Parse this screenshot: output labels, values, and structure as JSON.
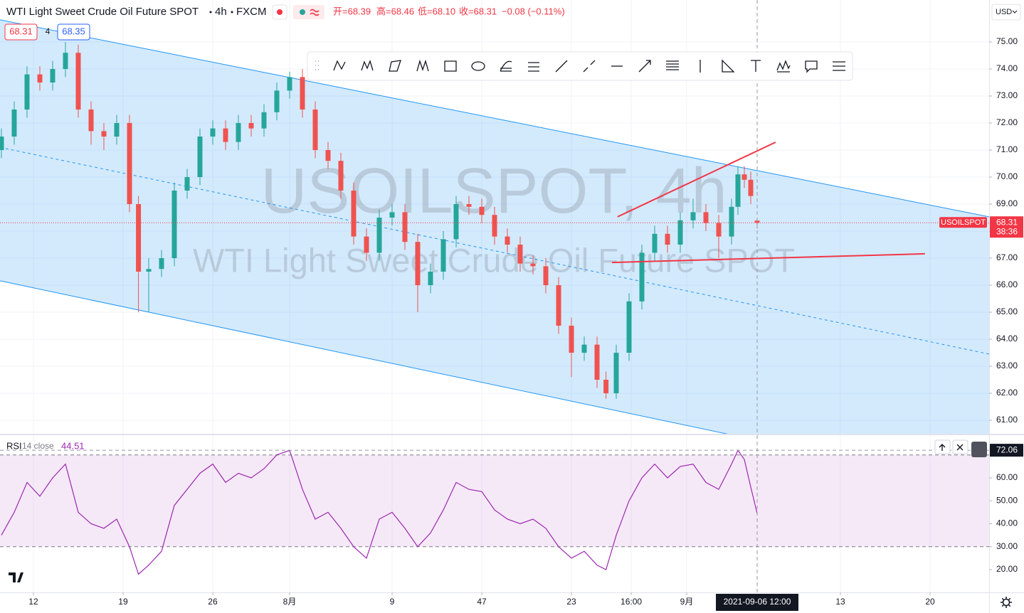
{
  "header": {
    "symbol": "WTI Light Sweet Crude Oil Future SPOT",
    "interval": "4h",
    "exchange": "FXCM",
    "ohlc": [
      "开=68.39",
      "高=68.46",
      "低=68.10",
      "收=68.31",
      "−0.08 (−0.11%)"
    ]
  },
  "quote": {
    "spread": "4",
    "ask": "68.35"
  },
  "currency": "USD",
  "watermark": [
    "USOILSPOT, 4h",
    "WTI Light Sweet Crude Oil Future SPOT"
  ],
  "crosshair": {
    "x": {
      "value": 68.5,
      "label": "2021-09-06 12:00"
    },
    "y": {
      "value": 72.06,
      "label": "72.06"
    }
  },
  "chart_data": [
    {
      "type": "candlestick",
      "up_color": "#26a69a",
      "down_color": "#ef5350",
      "x": [
        9.5,
        10.5,
        11.5,
        12.5,
        13.5,
        14.5,
        15.5,
        16.5,
        17.5,
        18.5,
        19.5,
        20.2,
        21,
        22,
        23,
        24,
        25,
        26,
        27,
        28,
        29,
        30,
        31,
        32,
        33,
        34,
        35,
        36,
        37,
        38,
        39,
        40,
        41,
        42,
        43,
        44,
        45,
        46,
        47,
        48,
        49,
        50,
        51,
        52,
        53,
        54,
        55,
        56,
        56.7,
        57.5,
        58.5,
        59.5,
        60.5,
        61.5,
        62.5,
        63.5,
        64.5,
        65.5,
        66.5,
        67,
        67.5,
        68,
        68.5
      ],
      "open": [
        71.0,
        71.5,
        72.5,
        73.8,
        73.5,
        74.0,
        74.6,
        72.5,
        71.7,
        71.5,
        72.0,
        69.0,
        66.5,
        66.6,
        67.0,
        69.5,
        70.0,
        71.5,
        71.8,
        71.3,
        72.0,
        71.8,
        72.4,
        73.2,
        73.7,
        72.5,
        71.0,
        70.6,
        69.5,
        67.8,
        67.2,
        68.5,
        68.7,
        67.6,
        66.0,
        66.5,
        67.7,
        69.0,
        68.9,
        68.6,
        67.8,
        67.5,
        66.8,
        66.7,
        66.0,
        64.5,
        63.5,
        63.8,
        62.5,
        62.0,
        63.5,
        65.4,
        67.2,
        67.9,
        67.5,
        68.4,
        68.7,
        68.3,
        67.8,
        68.9,
        70.1,
        69.9,
        68.39
      ],
      "high": [
        71.8,
        72.8,
        74.1,
        74.1,
        74.3,
        75.0,
        74.9,
        72.8,
        72.0,
        72.3,
        72.3,
        69.3,
        67.0,
        67.3,
        69.8,
        70.3,
        71.8,
        72.1,
        72.1,
        72.3,
        72.3,
        72.7,
        73.5,
        73.9,
        74.0,
        72.8,
        71.3,
        70.9,
        69.8,
        68.1,
        68.8,
        69.0,
        69.0,
        67.9,
        66.8,
        68.0,
        69.3,
        69.3,
        69.2,
        68.9,
        68.1,
        67.8,
        67.1,
        67.0,
        66.3,
        64.8,
        64.1,
        64.1,
        62.8,
        63.8,
        65.7,
        67.5,
        68.2,
        68.2,
        68.7,
        69.2,
        69.0,
        68.6,
        69.2,
        70.4,
        70.4,
        70.2,
        68.46
      ],
      "low": [
        70.7,
        71.2,
        72.2,
        73.2,
        73.2,
        73.7,
        72.2,
        71.2,
        71.0,
        71.2,
        68.7,
        65.0,
        65.0,
        66.3,
        66.7,
        69.2,
        69.7,
        71.2,
        71.0,
        71.0,
        71.5,
        71.5,
        72.1,
        72.9,
        72.2,
        70.7,
        70.3,
        69.2,
        67.5,
        66.9,
        66.9,
        68.2,
        67.3,
        65.0,
        65.7,
        66.2,
        67.4,
        68.6,
        68.3,
        67.5,
        67.2,
        66.5,
        66.4,
        65.7,
        64.2,
        62.6,
        63.2,
        62.2,
        61.8,
        61.8,
        63.2,
        65.1,
        66.9,
        67.2,
        67.2,
        68.1,
        68.0,
        67.0,
        67.5,
        68.6,
        69.6,
        69.0,
        68.1
      ],
      "close": [
        71.5,
        72.5,
        73.8,
        73.5,
        74.0,
        74.6,
        72.5,
        71.7,
        71.5,
        72.0,
        69.0,
        66.5,
        66.6,
        67.0,
        69.5,
        70.0,
        71.5,
        71.8,
        71.3,
        72.0,
        71.8,
        72.4,
        73.2,
        73.7,
        72.5,
        71.0,
        70.6,
        69.5,
        67.8,
        67.2,
        68.5,
        68.7,
        67.6,
        66.0,
        66.5,
        67.7,
        69.0,
        68.9,
        68.6,
        67.8,
        67.5,
        66.8,
        66.7,
        66.0,
        64.5,
        63.5,
        63.8,
        62.5,
        62.0,
        63.5,
        65.4,
        67.2,
        67.9,
        67.5,
        68.4,
        68.7,
        68.3,
        67.8,
        68.9,
        70.1,
        69.9,
        69.3,
        68.31
      ],
      "xlim": [
        9.39,
        86.61
      ],
      "ylim": [
        60.5,
        76.553
      ],
      "xticks": [
        12,
        19,
        26,
        {
          "value": 32,
          "label": "8月"
        },
        {
          "value": 40,
          "label": "9"
        },
        47,
        {
          "value": 54,
          "label": "23"
        },
        {
          "value": 58.67,
          "label": "16:00"
        },
        {
          "value": 63,
          "label": "9月"
        },
        {
          "value": 75,
          "label": "13"
        },
        {
          "value": 82,
          "label": "20"
        }
      ],
      "yticks": [
        {
          "value": 61,
          "label": "61.00"
        },
        {
          "value": 62,
          "label": "62.00"
        },
        {
          "value": 63,
          "label": "63.00"
        },
        {
          "value": 64,
          "label": "64.00"
        },
        {
          "value": 65,
          "label": "65.00"
        },
        {
          "value": 66,
          "label": "66.00"
        },
        {
          "value": 67,
          "label": "67.00"
        },
        {
          "value": 68,
          "label": "68.00"
        },
        {
          "value": 69,
          "label": "69.00"
        },
        {
          "value": 70,
          "label": "70.00"
        },
        {
          "value": 71,
          "label": "71.00"
        },
        {
          "value": 72,
          "label": "72.00"
        },
        {
          "value": 73,
          "label": "73.00"
        },
        {
          "value": 74,
          "label": "74.00"
        },
        {
          "value": 75,
          "label": "75.00"
        }
      ],
      "grid": true,
      "last_price": {
        "symbol": "USOILSPOT",
        "countdown": "38:36",
        "color": "#f23645"
      },
      "channel": {
        "color": "#2196f3",
        "upper": [
          [
            9.39,
            75.82
          ],
          [
            86.61,
            68.53
          ]
        ],
        "middle": [
          [
            9.39,
            71.1
          ],
          [
            86.61,
            63.45
          ]
        ],
        "lower": [
          [
            9.39,
            66.16
          ],
          [
            86.61,
            58.45
          ]
        ]
      },
      "trend_lines": [
        {
          "color": "#f23645",
          "points": [
            [
              57.6,
              68.53
            ],
            [
              69.94,
              71.29
            ]
          ]
        },
        {
          "color": "#f23645",
          "points": [
            [
              57.17,
              66.84
            ],
            [
              81.6,
              67.16
            ]
          ]
        }
      ]
    },
    {
      "type": "line",
      "title": "RSI",
      "subtitle": "14 close",
      "x": [
        9.5,
        10.5,
        11.5,
        12.5,
        13.5,
        14.5,
        15.5,
        16.5,
        17.5,
        18.5,
        19.5,
        20.2,
        21,
        22,
        23,
        24,
        25,
        26,
        27,
        28,
        29,
        30,
        31,
        32,
        33,
        34,
        35,
        36,
        37,
        38,
        39,
        40,
        41,
        42,
        43,
        44,
        45,
        46,
        47,
        48,
        49,
        50,
        51,
        52,
        53,
        54,
        55,
        56,
        56.7,
        57.5,
        58.5,
        59.5,
        60.5,
        61.5,
        62.5,
        63.5,
        64.5,
        65.5,
        66.5,
        67,
        67.5,
        68,
        68.5
      ],
      "series": [
        {
          "name": "RSI",
          "color": "#9c27b0",
          "values": [
            35,
            45,
            58,
            52,
            60,
            66,
            45,
            40,
            38,
            42,
            30,
            18,
            22,
            28,
            48,
            55,
            62,
            66,
            58,
            62,
            60,
            64,
            70,
            72,
            55,
            42,
            45,
            38,
            30,
            25,
            42,
            45,
            38,
            30,
            36,
            46,
            58,
            55,
            54,
            46,
            42,
            40,
            42,
            38,
            30,
            25,
            28,
            22,
            20,
            35,
            50,
            60,
            66,
            60,
            65,
            66,
            58,
            55,
            66,
            72,
            68,
            56,
            44.51
          ]
        }
      ],
      "bands": [
        30,
        70
      ],
      "band_color": "#9c27b0",
      "xlim": [
        9.39,
        86.61
      ],
      "ylim": [
        10.08,
        78.6
      ],
      "yticks": [
        {
          "value": 20,
          "label": "20.00"
        },
        {
          "value": 30,
          "label": "30.00"
        },
        {
          "value": 40,
          "label": "40.00"
        },
        {
          "value": 50,
          "label": "50.00"
        },
        {
          "value": 60,
          "label": "60.00"
        }
      ]
    }
  ]
}
